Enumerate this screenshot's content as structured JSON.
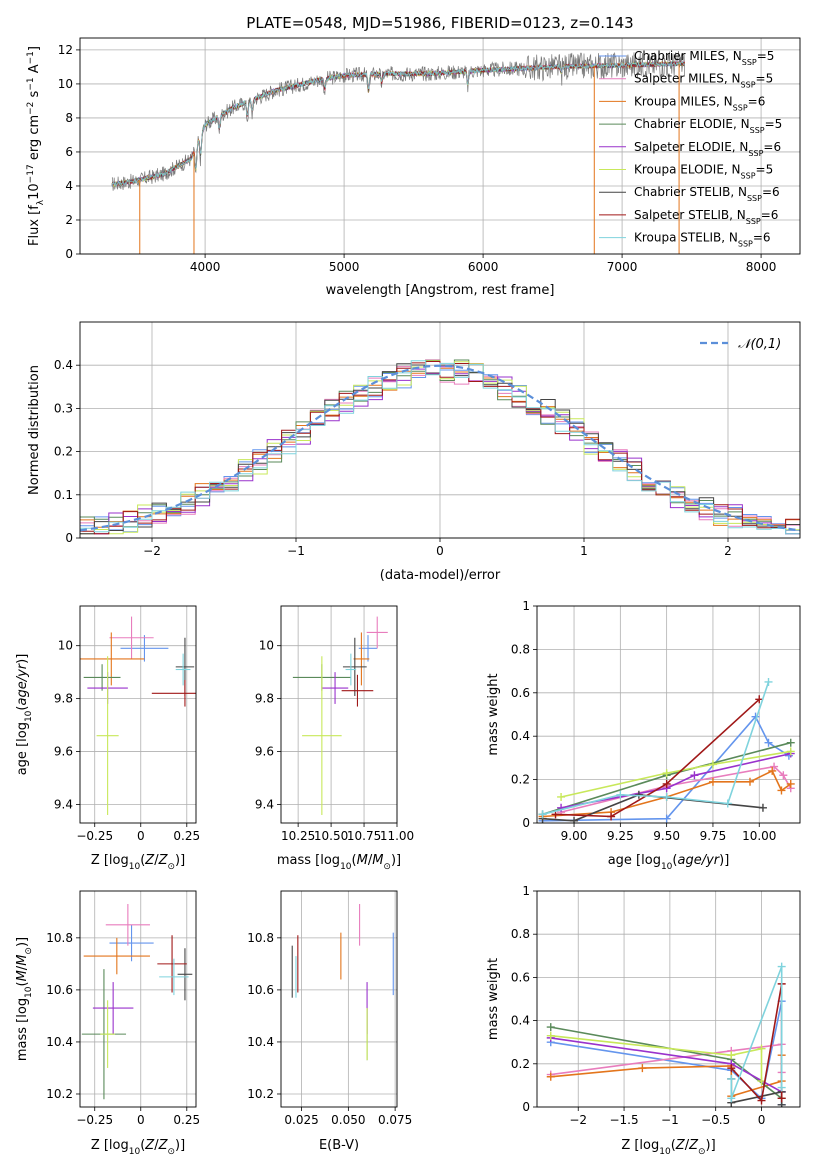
{
  "title": "PLATE=0548, MJD=51986, FIBERID=0123, z=0.143",
  "colors": {
    "Chabrier MILES": "#6495ed",
    "Salpeter MILES": "#e87dbd",
    "Kroupa MILES": "#e3751c",
    "Chabrier ELODIE": "#5a8a5a",
    "Salpeter ELODIE": "#9932cc",
    "Kroupa ELODIE": "#c8e85a",
    "Chabrier STELIB": "#444444",
    "Salpeter STELIB": "#a01818",
    "Kroupa STELIB": "#7fd3dd",
    "gaussian": "#5b8fd9"
  },
  "chart_data": [
    {
      "type": "line",
      "id": "spectrum",
      "xlabel": "wavelength [Angstrom, rest frame]",
      "ylabel": "Flux [fλ10⁻¹⁷ erg cm⁻² s⁻¹ A⁻¹]",
      "xlim": [
        3100,
        8280
      ],
      "ylim": [
        0,
        12.7
      ],
      "xticks": [
        4000,
        5000,
        6000,
        7000,
        8000
      ],
      "yticks": [
        0,
        2,
        4,
        6,
        8,
        10,
        12
      ],
      "data_range": [
        3330,
        7450
      ],
      "continuum": {
        "x": [
          3330,
          3500,
          3700,
          3900,
          4000,
          4200,
          4500,
          4800,
          5000,
          5300,
          5600,
          6000,
          6500,
          7000,
          7450
        ],
        "y": [
          4.1,
          4.3,
          4.7,
          5.6,
          7.6,
          8.6,
          9.6,
          10.2,
          10.5,
          10.6,
          10.6,
          10.8,
          11.0,
          11.1,
          11.2
        ]
      },
      "legend": [
        {
          "label": "Chabrier MILES",
          "nssp": "5"
        },
        {
          "label": "Salpeter MILES",
          "nssp": "5"
        },
        {
          "label": "Kroupa MILES",
          "nssp": "6"
        },
        {
          "label": "Chabrier ELODIE",
          "nssp": "5"
        },
        {
          "label": "Salpeter ELODIE",
          "nssp": "6"
        },
        {
          "label": "Kroupa ELODIE",
          "nssp": "5"
        },
        {
          "label": "Chabrier STELIB",
          "nssp": "6"
        },
        {
          "label": "Salpeter STELIB",
          "nssp": "6"
        },
        {
          "label": "Kroupa STELIB",
          "nssp": "6"
        }
      ]
    },
    {
      "type": "step",
      "id": "residuals",
      "xlabel": "(data-model)/error",
      "ylabel": "Normed distribution",
      "xlim": [
        -2.5,
        2.5
      ],
      "ylim": [
        0,
        0.5
      ],
      "xticks": [
        -2,
        -1,
        0,
        1,
        2
      ],
      "yticks": [
        0.0,
        0.1,
        0.2,
        0.3,
        0.4
      ],
      "bin_width": 0.1,
      "legend": "𝒩(0,1)",
      "grid": true
    },
    {
      "type": "errorbar",
      "id": "age-vs-z",
      "xlabel": "Z [log10(Z/Z⊙)]",
      "ylabel": "age  [log10(age/yr)]",
      "xlim": [
        -0.33,
        0.3
      ],
      "ylim": [
        9.33,
        10.15
      ],
      "xticks": [
        -0.25,
        0.0,
        0.25
      ],
      "yticks": [
        9.4,
        9.6,
        9.8,
        10.0
      ],
      "points": [
        {
          "model": "Chabrier MILES",
          "x": 0.02,
          "xerr": 0.13,
          "y": 9.99,
          "yerr": 0.05
        },
        {
          "model": "Salpeter MILES",
          "x": -0.05,
          "xerr": 0.12,
          "y": 10.03,
          "yerr": 0.08
        },
        {
          "model": "Kroupa MILES",
          "x": -0.16,
          "xerr": 0.18,
          "y": 9.95,
          "yerr": 0.1
        },
        {
          "model": "Chabrier ELODIE",
          "x": -0.21,
          "xerr": 0.1,
          "y": 9.88,
          "yerr": 0.05
        },
        {
          "model": "Salpeter ELODIE",
          "x": -0.18,
          "xerr": 0.11,
          "y": 9.84,
          "yerr": 0.06
        },
        {
          "model": "Kroupa ELODIE",
          "x": -0.18,
          "xerr": 0.06,
          "y": 9.66,
          "yerr": 0.3
        },
        {
          "model": "Chabrier STELIB",
          "x": 0.24,
          "xerr": 0.05,
          "y": 9.92,
          "yerr": 0.11
        },
        {
          "model": "Salpeter STELIB",
          "x": 0.24,
          "xerr": 0.18,
          "y": 9.82,
          "yerr": 0.05
        },
        {
          "model": "Kroupa STELIB",
          "x": 0.23,
          "xerr": 0.04,
          "y": 9.91,
          "yerr": 0.06
        }
      ]
    },
    {
      "type": "errorbar",
      "id": "age-vs-mass",
      "xlabel": "mass [log10(M/M⊙)]",
      "ylabel": "",
      "xlim": [
        10.12,
        11.0
      ],
      "ylim": [
        9.33,
        10.15
      ],
      "xticks": [
        10.25,
        10.5,
        10.75,
        11.0
      ],
      "xticklabels": [
        "10.25",
        "10.50",
        "10.75",
        "11.00"
      ],
      "yticks": [
        9.4,
        9.6,
        9.8,
        10.0
      ],
      "points": [
        {
          "model": "Chabrier MILES",
          "x": 10.78,
          "xerr": 0.07,
          "y": 9.99,
          "yerr": 0.05
        },
        {
          "model": "Salpeter MILES",
          "x": 10.85,
          "xerr": 0.08,
          "y": 10.05,
          "yerr": 0.06
        },
        {
          "model": "Kroupa MILES",
          "x": 10.73,
          "xerr": 0.06,
          "y": 9.95,
          "yerr": 0.1
        },
        {
          "model": "Chabrier ELODIE",
          "x": 10.43,
          "xerr": 0.22,
          "y": 9.88,
          "yerr": 0.05
        },
        {
          "model": "Salpeter ELODIE",
          "x": 10.53,
          "xerr": 0.1,
          "y": 9.84,
          "yerr": 0.06
        },
        {
          "model": "Kroupa ELODIE",
          "x": 10.43,
          "xerr": 0.15,
          "y": 9.66,
          "yerr": 0.3
        },
        {
          "model": "Chabrier STELIB",
          "x": 10.68,
          "xerr": 0.09,
          "y": 9.92,
          "yerr": 0.11
        },
        {
          "model": "Salpeter STELIB",
          "x": 10.7,
          "xerr": 0.12,
          "y": 9.83,
          "yerr": 0.06
        },
        {
          "model": "Kroupa STELIB",
          "x": 10.65,
          "xerr": 0.04,
          "y": 9.91,
          "yerr": 0.06
        }
      ]
    },
    {
      "type": "line",
      "id": "massweight-vs-age",
      "xlabel": "age  [log10(age/yr)]",
      "ylabel": "mass weight",
      "xlim": [
        8.8,
        10.22
      ],
      "ylim": [
        0,
        1.0
      ],
      "xticks": [
        9.0,
        9.25,
        9.5,
        9.75,
        10.0
      ],
      "xticklabels": [
        "9.00",
        "9.25",
        "9.50",
        "9.75",
        "10.00"
      ],
      "yticks": [
        0.0,
        0.2,
        0.4,
        0.6,
        0.8,
        1.0
      ],
      "series": [
        {
          "model": "Chabrier MILES",
          "x": [
            8.83,
            9.5,
            9.98,
            10.05,
            10.16
          ],
          "y": [
            0.01,
            0.02,
            0.49,
            0.37,
            0.31
          ]
        },
        {
          "model": "Salpeter MILES",
          "x": [
            8.93,
            9.5,
            10.08,
            10.13,
            10.17
          ],
          "y": [
            0.05,
            0.17,
            0.26,
            0.22,
            0.16
          ]
        },
        {
          "model": "Kroupa MILES",
          "x": [
            8.83,
            9.2,
            9.5,
            9.75,
            9.95,
            10.07,
            10.12,
            10.17
          ],
          "y": [
            0.03,
            0.05,
            0.12,
            0.19,
            0.19,
            0.24,
            0.15,
            0.18
          ]
        },
        {
          "model": "Chabrier ELODIE",
          "x": [
            8.83,
            9.5,
            10.17
          ],
          "y": [
            0.04,
            0.22,
            0.37
          ]
        },
        {
          "model": "Salpeter ELODIE",
          "x": [
            8.93,
            9.5,
            9.65,
            10.17
          ],
          "y": [
            0.07,
            0.16,
            0.22,
            0.32
          ]
        },
        {
          "model": "Kroupa ELODIE",
          "x": [
            8.93,
            9.5,
            9.75,
            10.17
          ],
          "y": [
            0.12,
            0.23,
            0.27,
            0.33
          ]
        },
        {
          "model": "Chabrier STELIB",
          "x": [
            8.83,
            9.0,
            9.35,
            10.02
          ],
          "y": [
            0.02,
            0.01,
            0.13,
            0.07
          ]
        },
        {
          "model": "Salpeter STELIB",
          "x": [
            8.9,
            9.2,
            9.5,
            10.0
          ],
          "y": [
            0.04,
            0.03,
            0.18,
            0.57
          ]
        },
        {
          "model": "Kroupa STELIB",
          "x": [
            8.83,
            9.25,
            9.5,
            9.83,
            10.05
          ],
          "y": [
            0.04,
            0.13,
            0.12,
            0.09,
            0.65
          ]
        }
      ]
    },
    {
      "type": "errorbar",
      "id": "mass-vs-z",
      "xlabel": "Z [log10(Z/Z⊙)]",
      "ylabel": "mass [log10(M/M⊙)]",
      "xlim": [
        -0.33,
        0.3
      ],
      "ylim": [
        10.15,
        10.98
      ],
      "xticks": [
        -0.25,
        0.0,
        0.25
      ],
      "yticks": [
        10.2,
        10.4,
        10.6,
        10.8
      ],
      "points": [
        {
          "model": "Chabrier MILES",
          "x": -0.05,
          "xerr": 0.12,
          "y": 10.78,
          "yerr": 0.07
        },
        {
          "model": "Salpeter MILES",
          "x": -0.07,
          "xerr": 0.12,
          "y": 10.85,
          "yerr": 0.08
        },
        {
          "model": "Kroupa MILES",
          "x": -0.13,
          "xerr": 0.18,
          "y": 10.73,
          "yerr": 0.07
        },
        {
          "model": "Chabrier ELODIE",
          "x": -0.2,
          "xerr": 0.12,
          "y": 10.43,
          "yerr": 0.25
        },
        {
          "model": "Salpeter ELODIE",
          "x": -0.15,
          "xerr": 0.11,
          "y": 10.53,
          "yerr": 0.1
        },
        {
          "model": "Kroupa ELODIE",
          "x": -0.18,
          "xerr": 0.04,
          "y": 10.43,
          "yerr": 0.13
        },
        {
          "model": "Chabrier STELIB",
          "x": 0.24,
          "xerr": 0.04,
          "y": 10.66,
          "yerr": 0.1
        },
        {
          "model": "Salpeter STELIB",
          "x": 0.17,
          "xerr": 0.08,
          "y": 10.7,
          "yerr": 0.11
        },
        {
          "model": "Kroupa STELIB",
          "x": 0.18,
          "xerr": 0.08,
          "y": 10.65,
          "yerr": 0.07
        }
      ]
    },
    {
      "type": "errorbar",
      "id": "mass-vs-ebv",
      "xlabel": "E(B-V)",
      "ylabel": "",
      "xlim": [
        0.014,
        0.076
      ],
      "ylim": [
        10.15,
        10.98
      ],
      "xticks": [
        0.025,
        0.05,
        0.075
      ],
      "xticklabels": [
        "0.025",
        "0.050",
        "0.075"
      ],
      "yticks": [
        10.2,
        10.4,
        10.6,
        10.8
      ],
      "points": [
        {
          "model": "Chabrier MILES",
          "x": 0.074,
          "xerr": 0,
          "y": 10.7,
          "yerr": 0.12
        },
        {
          "model": "Salpeter MILES",
          "x": 0.056,
          "xerr": 0,
          "y": 10.85,
          "yerr": 0.08
        },
        {
          "model": "Kroupa MILES",
          "x": 0.046,
          "xerr": 0,
          "y": 10.73,
          "yerr": 0.09
        },
        {
          "model": "Chabrier ELODIE",
          "x": 0.06,
          "xerr": 0,
          "y": 10.43,
          "yerr": 0.1
        },
        {
          "model": "Salpeter ELODIE",
          "x": 0.06,
          "xerr": 0,
          "y": 10.53,
          "yerr": 0.1
        },
        {
          "model": "Kroupa ELODIE",
          "x": 0.06,
          "xerr": 0,
          "y": 10.43,
          "yerr": 0.1
        },
        {
          "model": "Chabrier STELIB",
          "x": 0.02,
          "xerr": 0,
          "y": 10.67,
          "yerr": 0.1
        },
        {
          "model": "Salpeter STELIB",
          "x": 0.023,
          "xerr": 0,
          "y": 10.7,
          "yerr": 0.11
        },
        {
          "model": "Kroupa STELIB",
          "x": 0.022,
          "xerr": 0,
          "y": 10.65,
          "yerr": 0.08
        }
      ]
    },
    {
      "type": "line",
      "id": "massweight-vs-z",
      "xlabel": "Z [log10(Z/Z⊙)]",
      "ylabel": "mass weight",
      "xlim": [
        -2.45,
        0.42
      ],
      "ylim": [
        0,
        1.0
      ],
      "xticks": [
        -2.0,
        -1.5,
        -1.0,
        -0.5,
        0.0
      ],
      "yticks": [
        0.0,
        0.2,
        0.4,
        0.6,
        0.8,
        1.0
      ],
      "series": [
        {
          "model": "Chabrier MILES",
          "x": [
            -2.3,
            -0.33,
            0.0,
            0.22,
            0.22
          ],
          "y": [
            0.3,
            0.17,
            0.04,
            0.49,
            0.01
          ]
        },
        {
          "model": "Salpeter MILES",
          "x": [
            -2.3,
            -0.33,
            0.22,
            0.22
          ],
          "y": [
            0.15,
            0.26,
            0.29,
            0.16
          ]
        },
        {
          "model": "Kroupa MILES",
          "x": [
            -2.3,
            -1.3,
            -0.33,
            -0.33,
            0.22,
            0.22
          ],
          "y": [
            0.14,
            0.18,
            0.19,
            0.05,
            0.12,
            0.24
          ]
        },
        {
          "model": "Chabrier ELODIE",
          "x": [
            -2.3,
            -0.33,
            0.22
          ],
          "y": [
            0.37,
            0.22,
            0.04
          ]
        },
        {
          "model": "Salpeter ELODIE",
          "x": [
            -2.3,
            -0.33,
            0.22
          ],
          "y": [
            0.32,
            0.2,
            0.07
          ]
        },
        {
          "model": "Kroupa ELODIE",
          "x": [
            -2.3,
            -0.33,
            0.0,
            0.0
          ],
          "y": [
            0.33,
            0.24,
            0.27,
            0.12
          ]
        },
        {
          "model": "Chabrier STELIB",
          "x": [
            -0.33,
            -0.33,
            0.22,
            0.22
          ],
          "y": [
            0.13,
            0.02,
            0.07,
            0.01
          ]
        },
        {
          "model": "Salpeter STELIB",
          "x": [
            -0.33,
            0.0,
            0.22,
            0.22
          ],
          "y": [
            0.18,
            0.03,
            0.57,
            0.04
          ]
        },
        {
          "model": "Kroupa STELIB",
          "x": [
            -0.33,
            -0.33,
            0.22,
            0.22
          ],
          "y": [
            0.13,
            0.04,
            0.65,
            0.09
          ]
        }
      ]
    }
  ]
}
